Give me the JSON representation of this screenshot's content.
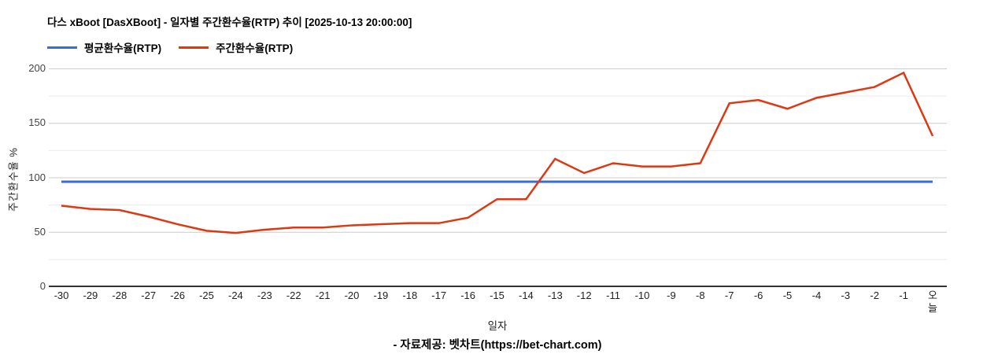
{
  "title": "다스 xBoot [DasXBoot] - 일자별 주간환수율(RTP) 추이 [2025-10-13 20:00:00]",
  "footer": "- 자료제공: 벳차트(https://bet-chart.com)",
  "chart_data": {
    "type": "line",
    "title": "다스 xBoot [DasXBoot] - 일자별 주간환수율(RTP) 추이 [2025-10-13 20:00:00]",
    "xlabel": "일자",
    "ylabel": "주간환수율 %",
    "ylim": [
      0,
      200
    ],
    "yticks": [
      0,
      50,
      100,
      150,
      200
    ],
    "gridlines": {
      "major": [
        50,
        100,
        150,
        200
      ],
      "minor": [
        25,
        75,
        125,
        175
      ]
    },
    "legend_position": "top",
    "categories": [
      "-30",
      "-29",
      "-28",
      "-27",
      "-26",
      "-25",
      "-24",
      "-23",
      "-22",
      "-21",
      "-20",
      "-19",
      "-18",
      "-17",
      "-16",
      "-15",
      "-14",
      "-13",
      "-12",
      "-11",
      "-10",
      "-9",
      "-8",
      "-7",
      "-6",
      "-5",
      "-4",
      "-3",
      "-2",
      "-1",
      "오늘"
    ],
    "series": [
      {
        "name": "평균환수율(RTP)",
        "color": "#3b6cd4",
        "stroke_width": 3,
        "values": [
          96,
          96,
          96,
          96,
          96,
          96,
          96,
          96,
          96,
          96,
          96,
          96,
          96,
          96,
          96,
          96,
          96,
          96,
          96,
          96,
          96,
          96,
          96,
          96,
          96,
          96,
          96,
          96,
          96,
          96,
          96
        ]
      },
      {
        "name": "주간환수율(RTP)",
        "color": "#dc3912",
        "stroke_width": 2.5,
        "values": [
          74,
          71,
          70,
          64,
          57,
          51,
          49,
          52,
          54,
          54,
          56,
          57,
          58,
          58,
          63,
          80,
          80,
          117,
          104,
          113,
          110,
          110,
          113,
          168,
          171,
          163,
          173,
          178,
          183,
          196,
          138
        ]
      }
    ],
    "colors": {
      "major_grid": "#cccccc",
      "minor_grid": "#ebebeb",
      "baseline": "#333333"
    }
  }
}
